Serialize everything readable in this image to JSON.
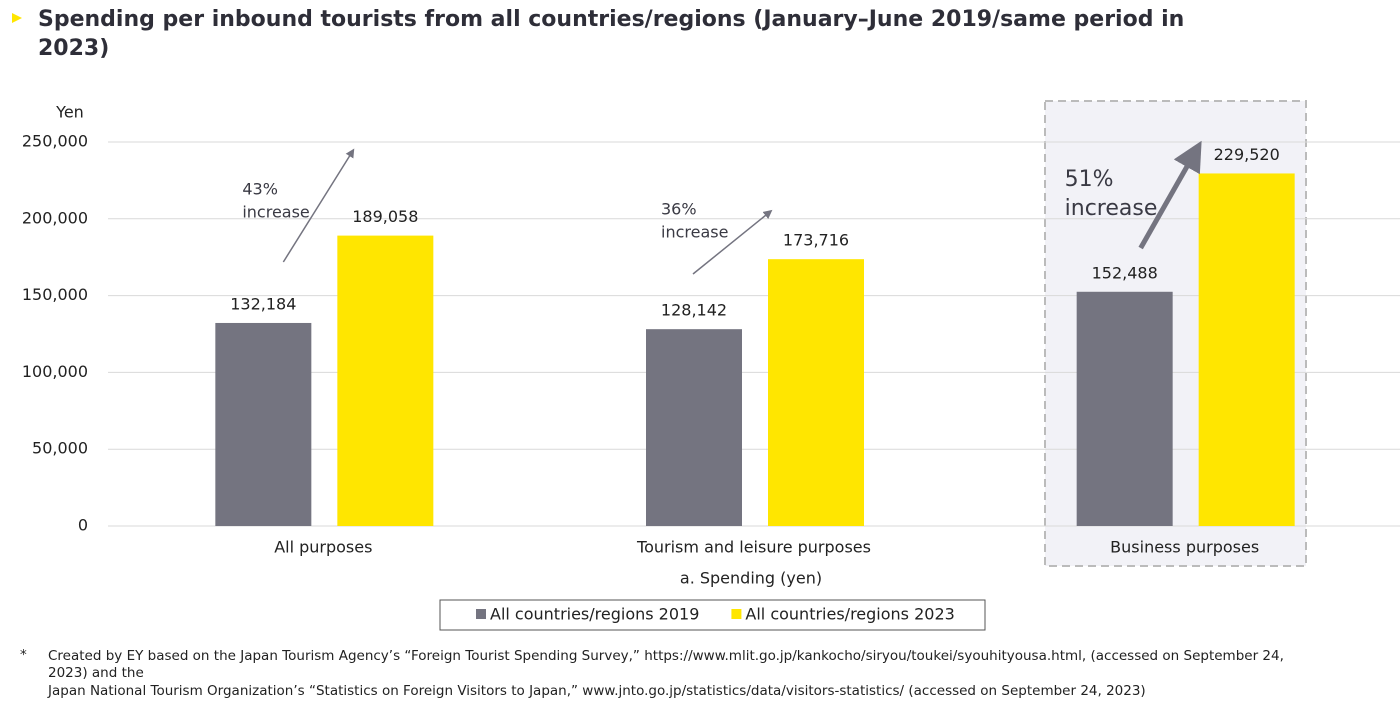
{
  "chart_data": {
    "type": "bar",
    "title": "Spending per inbound tourists from all countries/regions (January–June 2019/same period in 2023)",
    "y_axis_label": "Yen",
    "x_axis_label": "a. Spending (yen)",
    "categories": [
      "All purposes",
      "Tourism and leisure purposes",
      "Business purposes"
    ],
    "series": [
      {
        "name": "All countries/regions 2019",
        "color": "#747480",
        "values": [
          132184,
          128142,
          152488
        ],
        "value_labels": [
          "132,184",
          "128,142",
          "152,488"
        ]
      },
      {
        "name": "All countries/regions 2023",
        "color": "#ffe600",
        "values": [
          189058,
          173716,
          229520
        ],
        "value_labels": [
          "189,058",
          "173,716",
          "229,520"
        ]
      }
    ],
    "ylim": [
      0,
      250000
    ],
    "yticks": [
      0,
      {
        "value": 50000,
        "label": "50,000"
      },
      {
        "value": 100000,
        "label": "100,000"
      },
      {
        "value": 150000,
        "label": "150,000"
      },
      {
        "value": 200000,
        "label": "200,000"
      },
      {
        "value": 250000,
        "label": "250,000"
      }
    ],
    "grid": true,
    "annotations": [
      [
        "43%",
        "increase"
      ],
      [
        "36%",
        "increase"
      ],
      [
        "51%",
        "increase"
      ]
    ],
    "footnote": {
      "marker": "*",
      "lines": [
        "Created by EY based on the Japan Tourism Agency’s “Foreign Tourist Spending Survey,” https://www.mlit.go.jp/kankocho/siryou/toukei/syouhityousa.html, (accessed on September 24,",
        "2023) and the",
        "Japan National Tourism Organization’s “Statistics on Foreign Visitors to Japan,” www.jnto.go.jp/statistics/data/visitors-statistics/ (accessed on September 24, 2023)"
      ]
    }
  }
}
